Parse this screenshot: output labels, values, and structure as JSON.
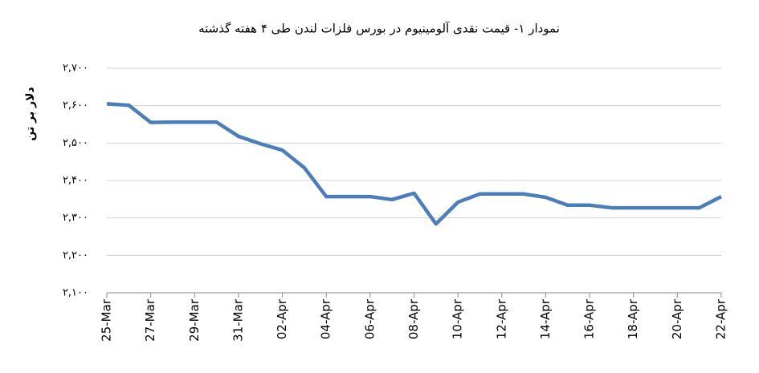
{
  "chart_data": {
    "type": "line",
    "title": "نمودار ۱- قیمت نقدی آلومینیوم در بورس فلزات لندن طی ۴ هفته گذشته",
    "y_label": "دلار بر تن",
    "categories": [
      "25-Mar",
      null,
      "27-Mar",
      null,
      "29-Mar",
      null,
      "31-Mar",
      null,
      "02-Apr",
      null,
      "04-Apr",
      null,
      "06-Apr",
      null,
      "08-Apr",
      null,
      "10-Apr",
      null,
      "12-Apr",
      null,
      "14-Apr",
      null,
      "16-Apr",
      null,
      "18-Apr",
      null,
      "20-Apr",
      null,
      "22-Apr"
    ],
    "values": [
      2605,
      2601,
      2555,
      2556,
      2556,
      2556,
      2518,
      2498,
      2481,
      2434,
      2357,
      2357,
      2357,
      2349,
      2366,
      2284,
      2342,
      2364,
      2364,
      2364,
      2355,
      2334,
      2334,
      2327,
      2327,
      2327,
      2327,
      2327,
      2357
    ],
    "color": "#4a7ebb",
    "ylim": [
      2100,
      2700
    ],
    "yticks": [
      {
        "value": 2100,
        "label": "۲,۱۰۰"
      },
      {
        "value": 2200,
        "label": "۲,۲۰۰"
      },
      {
        "value": 2300,
        "label": "۲,۳۰۰"
      },
      {
        "value": 2400,
        "label": "۲,۴۰۰"
      },
      {
        "value": 2500,
        "label": "۲,۵۰۰"
      },
      {
        "value": 2600,
        "label": "۲,۶۰۰"
      },
      {
        "value": 2700,
        "label": "۲,۷۰۰"
      }
    ],
    "grid": true
  }
}
